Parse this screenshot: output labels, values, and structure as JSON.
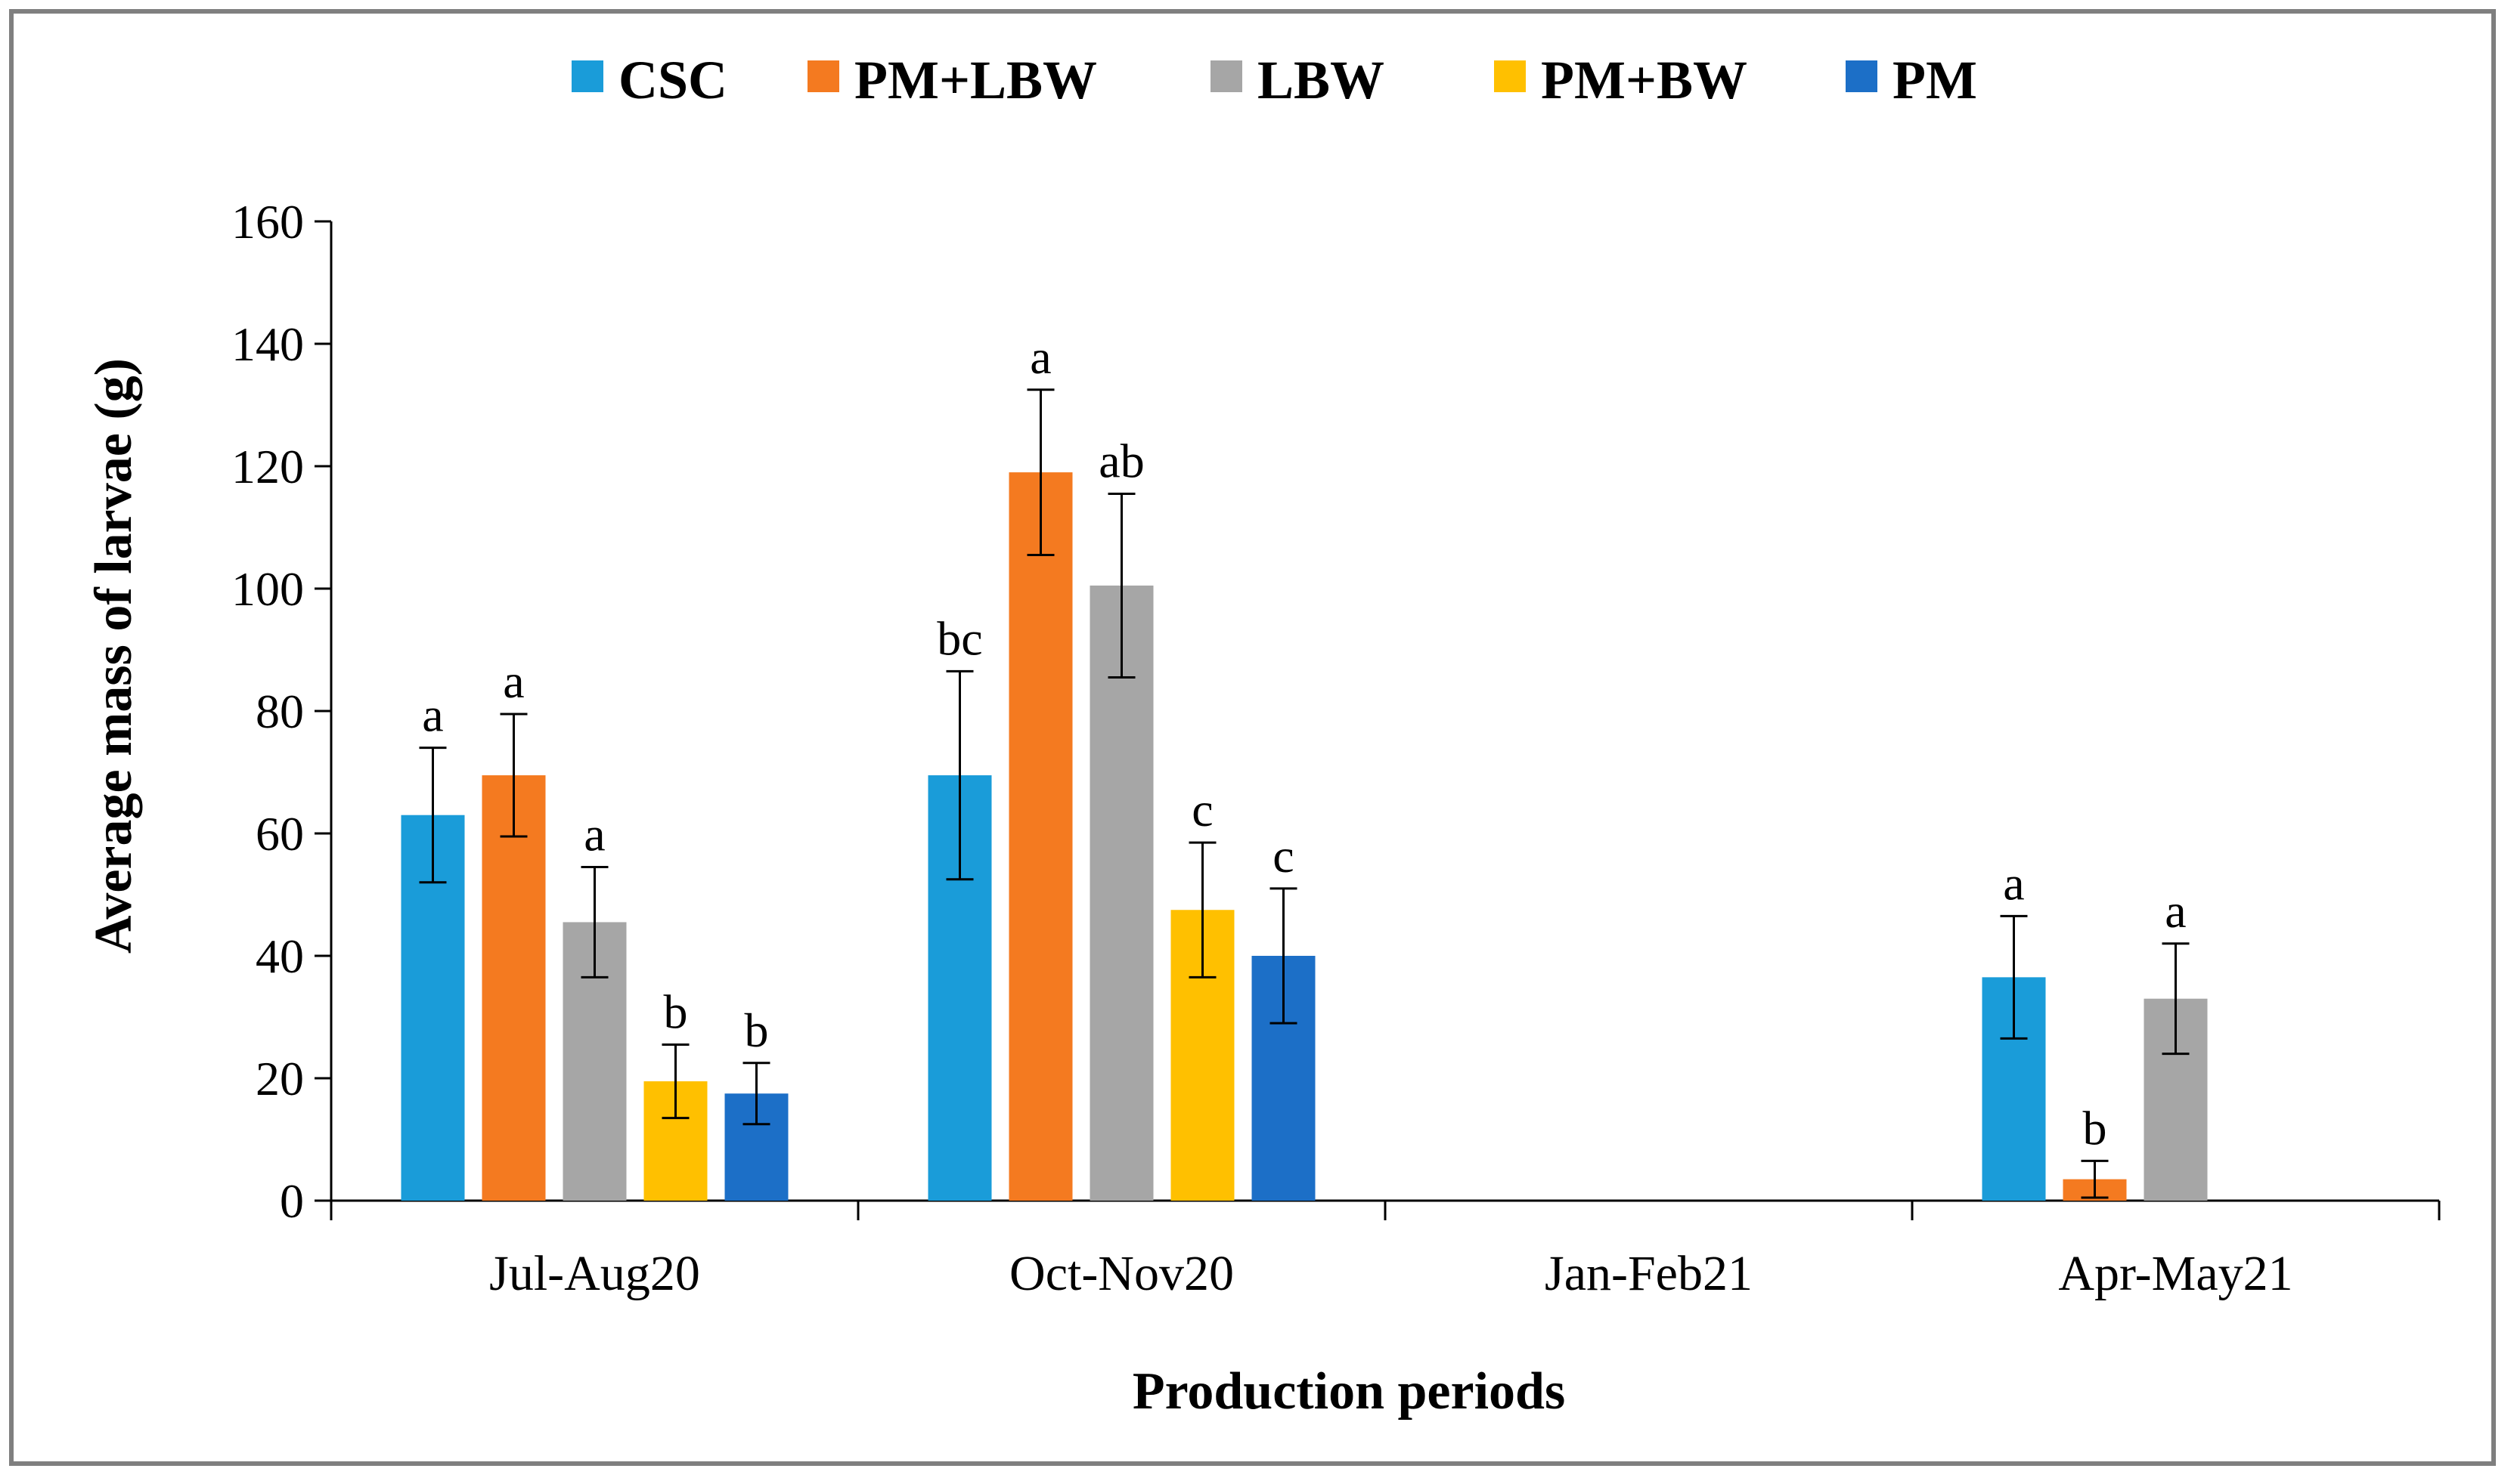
{
  "chart_data": {
    "type": "bar",
    "title": "",
    "xlabel": "Production periods",
    "ylabel": "Average mass of larvae (g)",
    "ylim": [
      0,
      160
    ],
    "yticks": [
      "0",
      "20",
      "40",
      "60",
      "80",
      "100",
      "120",
      "140",
      "160"
    ],
    "grid": false,
    "legend_position": "top-center",
    "categories": [
      "Jul-Aug20",
      "Oct-Nov20",
      "Jan-Feb21",
      "Apr-May21"
    ],
    "series": [
      {
        "name": "CSC",
        "color": "#1a9cd9",
        "values": [
          63,
          69.5,
          0,
          36.5
        ],
        "errors": [
          11,
          17,
          0,
          10
        ],
        "labels": [
          "a",
          "bc",
          "",
          "a"
        ]
      },
      {
        "name": "PM+LBW",
        "color": "#f47a20",
        "values": [
          69.5,
          119,
          0,
          3.5
        ],
        "errors": [
          10,
          13.5,
          0,
          3
        ],
        "labels": [
          "a",
          "a",
          "",
          "b"
        ]
      },
      {
        "name": "LBW",
        "color": "#a6a6a6",
        "values": [
          45.5,
          100.5,
          0,
          33
        ],
        "errors": [
          9,
          15,
          0,
          9
        ],
        "labels": [
          "a",
          "ab",
          "",
          "a"
        ]
      },
      {
        "name": "PM+BW",
        "color": "#ffc000",
        "values": [
          19.5,
          47.5,
          0,
          0
        ],
        "errors": [
          6,
          11,
          0,
          0
        ],
        "labels": [
          "b",
          "c",
          "",
          ""
        ]
      },
      {
        "name": "PM",
        "color": "#1c6fc7",
        "values": [
          17.5,
          40,
          0,
          0
        ],
        "errors": [
          5,
          11,
          0,
          0
        ],
        "labels": [
          "b",
          "c",
          "",
          ""
        ]
      }
    ]
  }
}
